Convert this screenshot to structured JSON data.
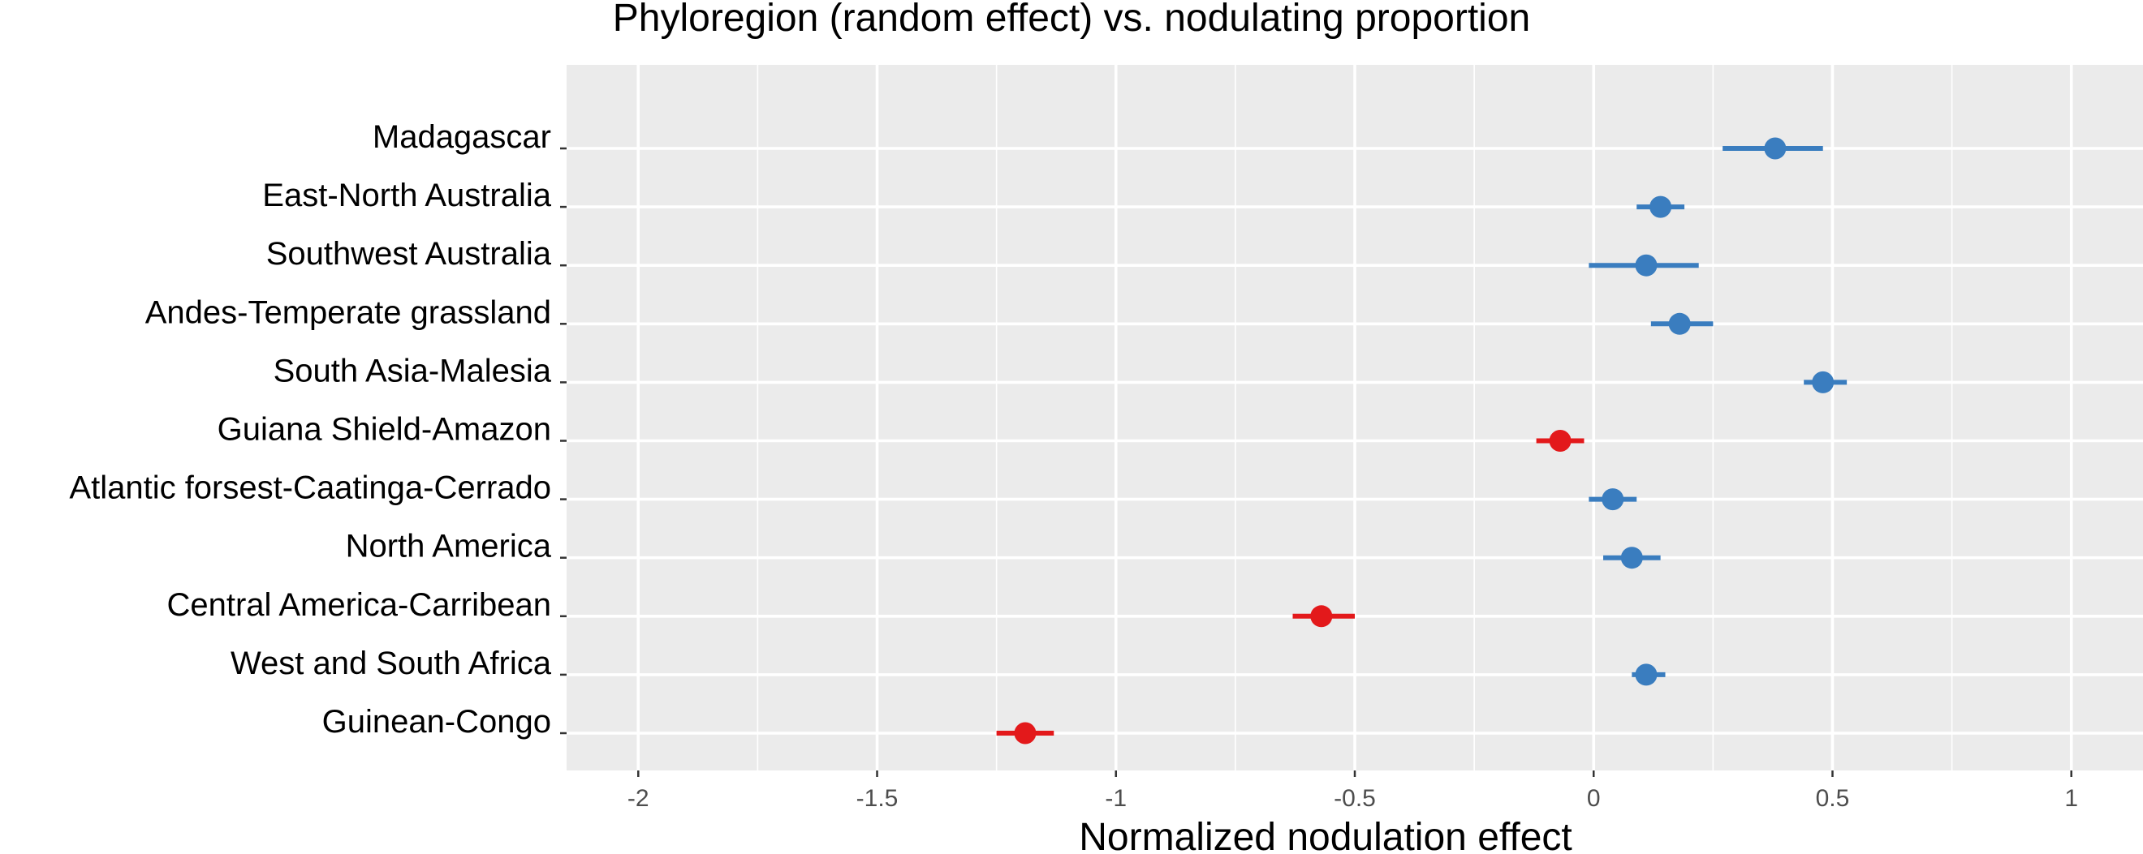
{
  "chart_data": {
    "type": "scatter",
    "title": "Phyloregion (random effect) vs. nodulating proportion",
    "xlabel": "Normalized nodulation effect",
    "ylabel": "",
    "xlim": [
      -2.15,
      1.15
    ],
    "xticks": [
      -2,
      -1.5,
      -1,
      -0.5,
      0,
      0.5,
      1
    ],
    "xtick_labels": [
      "-2",
      "-1.5",
      "-1",
      "-0.5",
      "0",
      "0.5",
      "1"
    ],
    "grid": true,
    "colors": {
      "positive": "#3a7dbf",
      "negative": "#e3191b",
      "panel": "#ebebeb",
      "grid": "#ffffff"
    },
    "points": [
      {
        "category": "Madagascar",
        "value": 0.38,
        "lower": 0.27,
        "upper": 0.48,
        "sign": "positive"
      },
      {
        "category": "East-North Australia",
        "value": 0.14,
        "lower": 0.09,
        "upper": 0.19,
        "sign": "positive"
      },
      {
        "category": "Southwest Australia",
        "value": 0.11,
        "lower": -0.01,
        "upper": 0.22,
        "sign": "positive"
      },
      {
        "category": "Andes-Temperate grassland",
        "value": 0.18,
        "lower": 0.12,
        "upper": 0.25,
        "sign": "positive"
      },
      {
        "category": "South Asia-Malesia",
        "value": 0.48,
        "lower": 0.44,
        "upper": 0.53,
        "sign": "positive"
      },
      {
        "category": "Guiana Shield-Amazon",
        "value": -0.07,
        "lower": -0.12,
        "upper": -0.02,
        "sign": "negative"
      },
      {
        "category": "Atlantic forsest-Caatinga-Cerrado",
        "value": 0.04,
        "lower": -0.01,
        "upper": 0.09,
        "sign": "positive"
      },
      {
        "category": "North America",
        "value": 0.08,
        "lower": 0.02,
        "upper": 0.14,
        "sign": "positive"
      },
      {
        "category": "Central America-Carribean",
        "value": -0.57,
        "lower": -0.63,
        "upper": -0.5,
        "sign": "negative"
      },
      {
        "category": "West and South Africa",
        "value": 0.11,
        "lower": 0.08,
        "upper": 0.15,
        "sign": "positive"
      },
      {
        "category": "Guinean-Congo",
        "value": -1.19,
        "lower": -1.25,
        "upper": -1.13,
        "sign": "negative"
      }
    ]
  }
}
